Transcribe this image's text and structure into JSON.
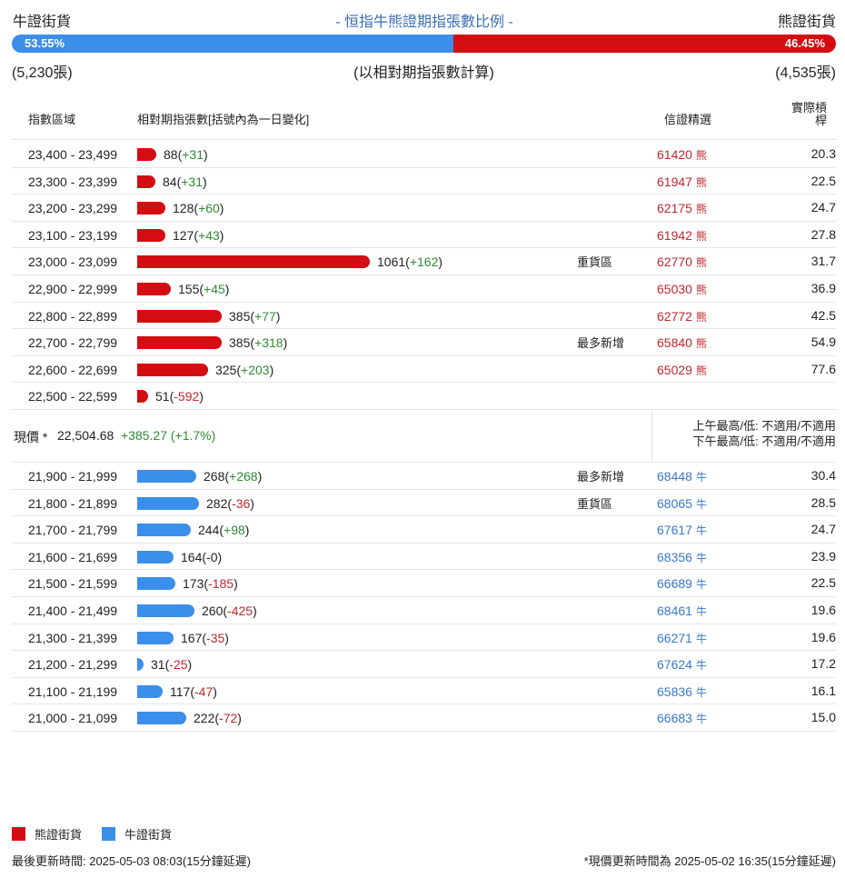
{
  "header": {
    "left": "牛證街貨",
    "center": "- 恒指牛熊證期指張數比例 -",
    "right": "熊證街貨"
  },
  "ratio": {
    "bull_pct_label": "53.55%",
    "bear_pct_label": "46.45%",
    "bull_fraction": 0.5355,
    "bull_color": "#3b8eea",
    "bear_color": "#d40d12"
  },
  "counts": {
    "bull": "(5,230張)",
    "note": "(以相對期指張數計算)",
    "bear": "(4,535張)"
  },
  "table_header": {
    "range": "指數區域",
    "contracts": "相對期指張數[括號內為一日變化]",
    "warrant": "信證精選",
    "ratio": "實際槓桿"
  },
  "bear_rows": [
    {
      "range": "23,400 - 23,499",
      "value": 88,
      "count": "88",
      "change": "+31",
      "tag": "",
      "code": "61420",
      "kind": "熊",
      "ratio": "20.3"
    },
    {
      "range": "23,300 - 23,399",
      "value": 84,
      "count": "84",
      "change": "+31",
      "tag": "",
      "code": "61947",
      "kind": "熊",
      "ratio": "22.5"
    },
    {
      "range": "23,200 - 23,299",
      "value": 128,
      "count": "128",
      "change": "+60",
      "tag": "",
      "code": "62175",
      "kind": "熊",
      "ratio": "24.7"
    },
    {
      "range": "23,100 - 23,199",
      "value": 127,
      "count": "127",
      "change": "+43",
      "tag": "",
      "code": "61942",
      "kind": "熊",
      "ratio": "27.8"
    },
    {
      "range": "23,000 - 23,099",
      "value": 1061,
      "count": "1061",
      "change": "+162",
      "tag": "重貨區",
      "code": "62770",
      "kind": "熊",
      "ratio": "31.7"
    },
    {
      "range": "22,900 - 22,999",
      "value": 155,
      "count": "155",
      "change": "+45",
      "tag": "",
      "code": "65030",
      "kind": "熊",
      "ratio": "36.9"
    },
    {
      "range": "22,800 - 22,899",
      "value": 385,
      "count": "385",
      "change": "+77",
      "tag": "",
      "code": "62772",
      "kind": "熊",
      "ratio": "42.5"
    },
    {
      "range": "22,700 - 22,799",
      "value": 385,
      "count": "385",
      "change": "+318",
      "tag": "最多新增",
      "code": "65840",
      "kind": "熊",
      "ratio": "54.9"
    },
    {
      "range": "22,600 - 22,699",
      "value": 325,
      "count": "325",
      "change": "+203",
      "tag": "",
      "code": "65029",
      "kind": "熊",
      "ratio": "77.6"
    },
    {
      "range": "22,500 - 22,599",
      "value": 51,
      "count": "51",
      "change": "-592",
      "tag": "",
      "code": "",
      "kind": "",
      "ratio": ""
    }
  ],
  "current": {
    "label": "現價 *",
    "value": "22,504.68",
    "change": "+385.27 (+1.7%)",
    "am": "上午最高/低: 不適用/不適用",
    "pm": "下午最高/低: 不適用/不適用"
  },
  "bull_rows": [
    {
      "range": "21,900 - 21,999",
      "value": 268,
      "count": "268",
      "change": "+268",
      "tag": "最多新增",
      "code": "68448",
      "kind": "牛",
      "ratio": "30.4"
    },
    {
      "range": "21,800 - 21,899",
      "value": 282,
      "count": "282",
      "change": "-36",
      "tag": "重貨區",
      "code": "68065",
      "kind": "牛",
      "ratio": "28.5"
    },
    {
      "range": "21,700 - 21,799",
      "value": 244,
      "count": "244",
      "change": "+98",
      "tag": "",
      "code": "67617",
      "kind": "牛",
      "ratio": "24.7"
    },
    {
      "range": "21,600 - 21,699",
      "value": 164,
      "count": "164",
      "change": "-0",
      "tag": "",
      "code": "68356",
      "kind": "牛",
      "ratio": "23.9"
    },
    {
      "range": "21,500 - 21,599",
      "value": 173,
      "count": "173",
      "change": "-185",
      "tag": "",
      "code": "66689",
      "kind": "牛",
      "ratio": "22.5"
    },
    {
      "range": "21,400 - 21,499",
      "value": 260,
      "count": "260",
      "change": "-425",
      "tag": "",
      "code": "68461",
      "kind": "牛",
      "ratio": "19.6"
    },
    {
      "range": "21,300 - 21,399",
      "value": 167,
      "count": "167",
      "change": "-35",
      "tag": "",
      "code": "66271",
      "kind": "牛",
      "ratio": "19.6"
    },
    {
      "range": "21,200 - 21,299",
      "value": 31,
      "count": "31",
      "change": "-25",
      "tag": "",
      "code": "67624",
      "kind": "牛",
      "ratio": "17.2"
    },
    {
      "range": "21,100 - 21,199",
      "value": 117,
      "count": "117",
      "change": "-47",
      "tag": "",
      "code": "65836",
      "kind": "牛",
      "ratio": "16.1"
    },
    {
      "range": "21,000 - 21,099",
      "value": 222,
      "count": "222",
      "change": "-72",
      "tag": "",
      "code": "66683",
      "kind": "牛",
      "ratio": "15.0"
    }
  ],
  "legend": {
    "bear": "熊證街貨",
    "bull": "牛證街貨"
  },
  "footer": {
    "left": "最後更新時間: 2025-05-03 08:03(15分鐘延遲)",
    "right": "*現價更新時間為 2025-05-02 16:35(15分鐘延遲)"
  }
}
